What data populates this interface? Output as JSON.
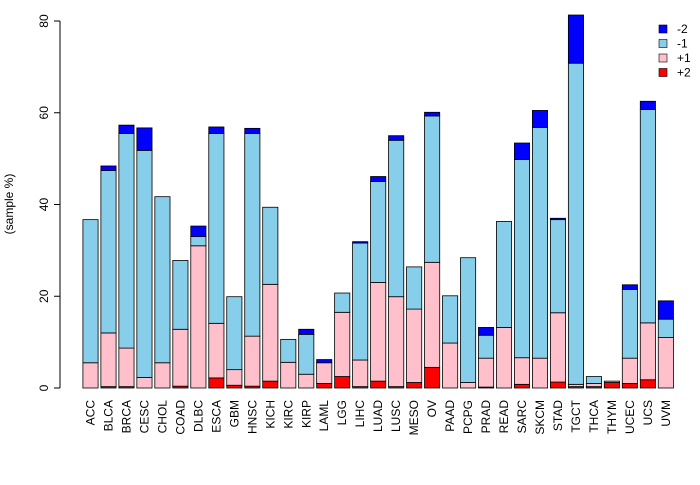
{
  "chart_data": {
    "type": "bar",
    "stacked": true,
    "title": "",
    "xlabel": "",
    "ylabel": "(sample %)",
    "ylim": [
      0,
      80
    ],
    "yticks": [
      0,
      20,
      40,
      60,
      80
    ],
    "grid": false,
    "legend_position": "top-right",
    "categories": [
      "ACC",
      "BLCA",
      "BRCA",
      "CESC",
      "CHOL",
      "COAD",
      "DLBC",
      "ESCA",
      "GBM",
      "HNSC",
      "KICH",
      "KIRC",
      "KIRP",
      "LAML",
      "LGG",
      "LIHC",
      "LUAD",
      "LUSC",
      "MESO",
      "OV",
      "PAAD",
      "PCPG",
      "PRAD",
      "READ",
      "SARC",
      "SKCM",
      "STAD",
      "TGCT",
      "THCA",
      "THYM",
      "UCEC",
      "UCS",
      "UVM"
    ],
    "series": [
      {
        "name": "+2",
        "color": "#ff0000",
        "values": [
          0,
          0.3,
          0.3,
          0,
          0,
          0.4,
          0,
          2.2,
          0.6,
          0.4,
          1.5,
          0,
          0,
          1.0,
          2.5,
          0.3,
          1.5,
          0.3,
          1.2,
          4.5,
          0,
          0,
          0.2,
          0,
          0.8,
          0,
          1.3,
          0.3,
          0.3,
          1.2,
          1.0,
          1.8,
          0
        ]
      },
      {
        "name": "+1",
        "color": "#ffc0cb",
        "values": [
          5.5,
          11.7,
          8.4,
          2.3,
          5.5,
          12.4,
          31.0,
          11.9,
          3.4,
          10.9,
          21.1,
          5.6,
          3.0,
          4.5,
          14.0,
          5.8,
          21.5,
          19.6,
          16.0,
          22.9,
          9.8,
          1.2,
          6.3,
          13.2,
          5.8,
          6.5,
          15.1,
          0.5,
          0.7,
          0.3,
          5.5,
          12.4,
          11.0
        ]
      },
      {
        "name": "-1",
        "color": "#87ceeb",
        "values": [
          31.2,
          35.4,
          46.8,
          49.5,
          36.2,
          15.0,
          2.0,
          41.4,
          15.9,
          44.2,
          16.8,
          5.0,
          8.7,
          0,
          4.2,
          25.5,
          22.0,
          34.1,
          9.2,
          31.9,
          10.3,
          27.2,
          5.0,
          23.1,
          43.2,
          50.3,
          20.3,
          70.0,
          1.5,
          0,
          15.0,
          46.5,
          4.0
        ]
      },
      {
        "name": "-2",
        "color": "#0000ff",
        "values": [
          0,
          1.0,
          1.8,
          4.9,
          0,
          0,
          2.3,
          1.4,
          0,
          1.1,
          0,
          0,
          1.1,
          0.7,
          0,
          0.3,
          1.1,
          1.0,
          0,
          0.8,
          0,
          0,
          1.7,
          0,
          3.6,
          3.7,
          0.3,
          10.5,
          0,
          0,
          1.0,
          1.8,
          4.0
        ]
      }
    ],
    "legend_order": [
      "-2",
      "-1",
      "+1",
      "+2"
    ]
  }
}
